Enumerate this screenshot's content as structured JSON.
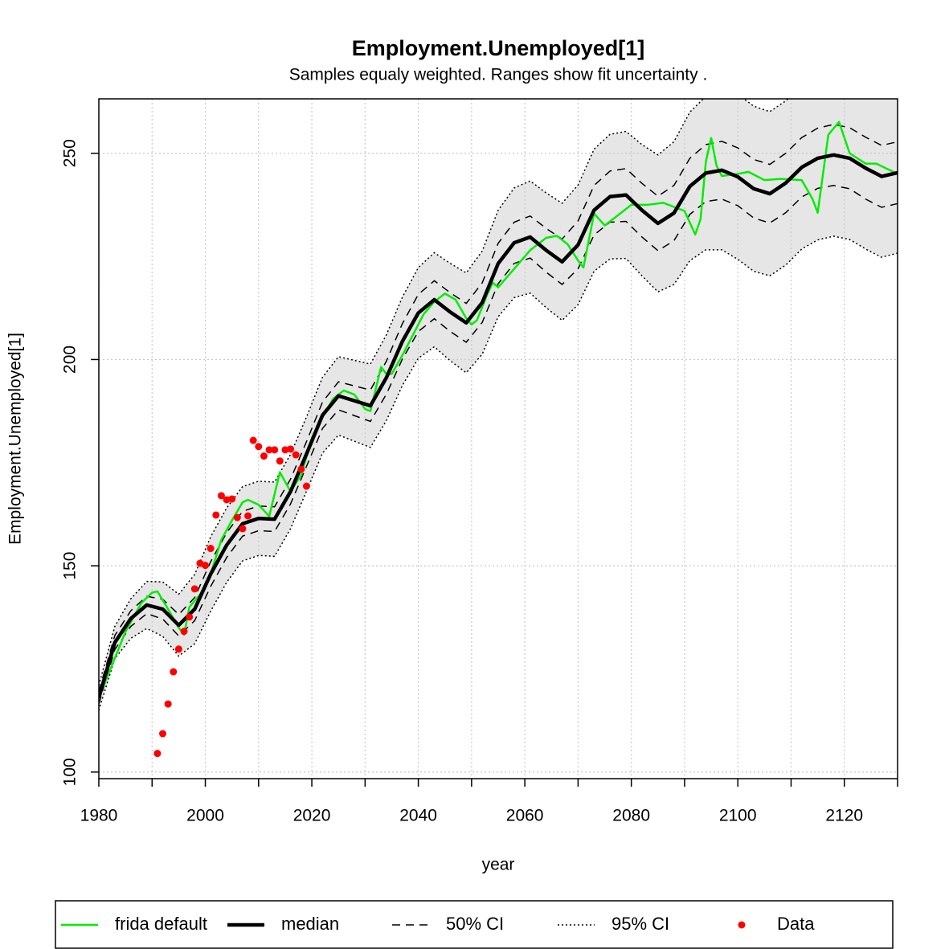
{
  "chart_data": {
    "type": "line",
    "title": "Employment.Unemployed[1]",
    "subtitle": "Samples equaly weighted. Ranges show  fit uncertainty .",
    "x_label": "year",
    "y_label": "Employment.Unemployed[1]",
    "xlim": [
      1980,
      2130
    ],
    "ylim": [
      98.4,
      263.2
    ],
    "xticks": [
      1980,
      2000,
      2020,
      2040,
      2060,
      2080,
      2100,
      2120
    ],
    "xminorticks": [
      1990,
      2010,
      2030,
      2050,
      2070,
      2090,
      2110,
      2130
    ],
    "yticks": [
      100,
      150,
      200,
      250
    ],
    "grid": true,
    "legend": "bottom",
    "x": [
      1980,
      1983,
      1986,
      1989,
      1992,
      1995,
      1998,
      2001,
      2004,
      2007,
      2010,
      2013,
      2016,
      2019,
      2022,
      2025,
      2028,
      2031,
      2034,
      2037,
      2040,
      2043,
      2046,
      2049,
      2052,
      2055,
      2058,
      2061,
      2064,
      2067,
      2070,
      2073,
      2076,
      2079,
      2082,
      2085,
      2088,
      2091,
      2094,
      2097,
      2100,
      2103,
      2106,
      2109,
      2112,
      2115,
      2118,
      2121,
      2124,
      2127,
      2130
    ],
    "series": [
      {
        "name": "frida default",
        "style": "line",
        "color": "#00ee00",
        "width": 2.5,
        "x": [
          1980,
          1985,
          1988,
          1990,
          1991,
          1993,
          1995,
          1996,
          1997,
          1999,
          2001,
          2003,
          2005,
          2007,
          2008,
          2010,
          2012,
          2014,
          2016,
          2018,
          2020,
          2022,
          2024,
          2026,
          2028,
          2030,
          2031,
          2033,
          2034,
          2035,
          2037,
          2039,
          2041,
          2043,
          2045,
          2047,
          2049,
          2050,
          2051,
          2053,
          2054,
          2055,
          2058,
          2061,
          2064,
          2066,
          2068,
          2070,
          2071,
          2073,
          2075,
          2077,
          2080,
          2083,
          2086,
          2090,
          2092,
          2093,
          2094,
          2095,
          2096,
          2097,
          2100,
          2102,
          2105,
          2108,
          2112,
          2114,
          2115,
          2117,
          2119,
          2121,
          2124,
          2126,
          2130
        ],
        "values": [
          118,
          134,
          141,
          143.5,
          143.8,
          139.5,
          135,
          133.3,
          140,
          143,
          148,
          156.3,
          161,
          165.4,
          166,
          164.8,
          162,
          172.7,
          168,
          172,
          181,
          186,
          190.5,
          192.5,
          191.5,
          188,
          187.5,
          198.2,
          196.5,
          196.5,
          201,
          206,
          211,
          214,
          216,
          214.5,
          210,
          208.5,
          209.5,
          216,
          218.6,
          217.5,
          222,
          226.5,
          229.5,
          230,
          228,
          224,
          222.3,
          235.4,
          232.5,
          234.5,
          237.5,
          237.5,
          238,
          236,
          230.3,
          234,
          248,
          253.7,
          247,
          244.5,
          245,
          245.5,
          243.5,
          243.8,
          243.5,
          239,
          235.6,
          254.5,
          257.6,
          250,
          247.5,
          247.5,
          245
        ]
      },
      {
        "name": "median",
        "style": "line",
        "color": "#000000",
        "width": 4.5,
        "values": [
          118,
          131.4,
          137.2,
          140.5,
          139.5,
          135.6,
          139.5,
          148,
          155,
          160.2,
          161.5,
          161.3,
          168,
          177.1,
          186.5,
          191.2,
          190,
          188.8,
          195.6,
          204.4,
          211.3,
          214.5,
          211.5,
          208.9,
          213.8,
          223.3,
          228.3,
          229.7,
          226.5,
          223.7,
          227.8,
          236.2,
          239.5,
          239.9,
          236.2,
          233,
          235.5,
          242,
          245.2,
          245.9,
          244.3,
          241.4,
          240.2,
          242.8,
          246.6,
          248.8,
          249.6,
          248.8,
          246.4,
          244.4,
          245.3
        ]
      },
      {
        "name": "50% CI",
        "style": "band",
        "color": "#000000",
        "fill": "#cccccc",
        "dash": "10 7",
        "lower": [
          116.5,
          129.7,
          135.3,
          138.4,
          137.1,
          133,
          136.7,
          145,
          152,
          157.2,
          158.5,
          158.3,
          165,
          174.1,
          183.3,
          187.8,
          186.4,
          185,
          191.6,
          200.1,
          206.8,
          209.9,
          206.8,
          204.2,
          209,
          218.4,
          223.3,
          224.6,
          221.2,
          218.2,
          222,
          230.2,
          233.3,
          233.5,
          229.7,
          226.4,
          228.8,
          235.2,
          238.3,
          238.9,
          237.3,
          234.3,
          233.1,
          235.6,
          239.4,
          241.5,
          242.2,
          241.4,
          238.9,
          236.9,
          237.8
        ],
        "upper": [
          119.5,
          133.1,
          139.1,
          142.6,
          141.9,
          138.2,
          142.3,
          151,
          158,
          163.2,
          164.5,
          164.3,
          171,
          180.1,
          189.7,
          194.6,
          193.6,
          192.6,
          199.6,
          208.7,
          215.8,
          219.1,
          216.2,
          213.6,
          218.6,
          228.2,
          233.3,
          234.8,
          231.8,
          229.2,
          233.6,
          242.2,
          245.7,
          246.3,
          242.7,
          239.6,
          242.2,
          248.8,
          252.1,
          252.9,
          251.3,
          248.5,
          247.3,
          250,
          253.8,
          256.1,
          257,
          256.2,
          253.9,
          251.9,
          252.8
        ]
      },
      {
        "name": "95% CI",
        "style": "band",
        "color": "#000000",
        "fill": "#e6e6e6",
        "dash": "2 3",
        "lower": [
          115,
          127.5,
          132.4,
          134.8,
          132.9,
          128.1,
          131.1,
          139,
          146,
          151.2,
          152.5,
          152.3,
          159,
          168.1,
          177.3,
          181.7,
          180.2,
          178.7,
          185.2,
          193.7,
          200.3,
          203.1,
          199.7,
          196.8,
          201.3,
          210.4,
          215,
          216.1,
          212.6,
          209.5,
          213.3,
          221.4,
          224.4,
          224.5,
          220.3,
          216.4,
          218.2,
          224,
          226.6,
          226.6,
          224.3,
          221.4,
          220.3,
          222.9,
          226.8,
          229,
          229.9,
          229.1,
          226.8,
          224.8,
          225.8
        ],
        "upper": [
          121,
          135.3,
          142,
          146.2,
          146.1,
          143.1,
          147.9,
          157,
          164,
          169.2,
          170.5,
          170.3,
          177,
          186.1,
          195.7,
          200.7,
          199.8,
          198.9,
          206,
          215.1,
          222.3,
          225.9,
          223.3,
          221,
          226.3,
          236.2,
          241.6,
          243.3,
          240.4,
          237.9,
          242.3,
          251,
          254.6,
          255.3,
          252.1,
          249.6,
          252.8,
          260,
          263.8,
          265.2,
          264.3,
          261.4,
          260.1,
          262.7,
          266.4,
          268.6,
          269.3,
          268.5,
          266,
          264,
          264.8
        ]
      },
      {
        "name": "Data",
        "style": "points",
        "color": "#ff0000",
        "x": [
          1991,
          1992,
          1993,
          1994,
          1995,
          1996,
          1997,
          1998,
          1999,
          2000,
          2001,
          2002,
          2003,
          2004,
          2005,
          2006,
          2007,
          2008,
          2009,
          2010,
          2011,
          2012,
          2013,
          2014,
          2015,
          2016,
          2017,
          2018,
          2019
        ],
        "values": [
          104.5,
          109.3,
          116.5,
          124.3,
          129.8,
          134.1,
          137.6,
          144.4,
          150.6,
          150.1,
          154.2,
          162.3,
          167,
          166,
          166.2,
          161.7,
          159,
          162.1,
          180.4,
          178.9,
          176.6,
          178.1,
          178.1,
          175.4,
          178.1,
          178.3,
          176.9,
          173.4,
          169.3
        ]
      }
    ]
  }
}
